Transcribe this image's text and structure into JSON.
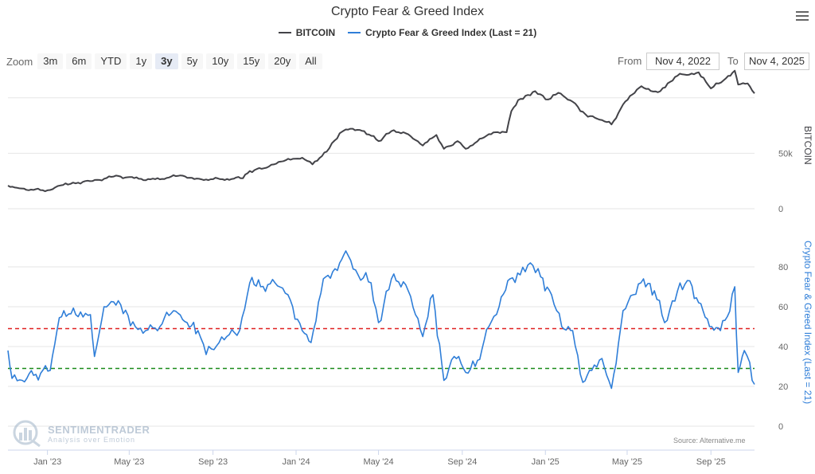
{
  "title": "Crypto Fear & Greed Index",
  "legend": [
    {
      "name": "BITCOIN",
      "color": "#434348"
    },
    {
      "name": "Crypto Fear & Greed Index (Last = 21)",
      "color": "#2f7ed8"
    }
  ],
  "zoom": {
    "label": "Zoom",
    "buttons": [
      "3m",
      "6m",
      "YTD",
      "1y",
      "3y",
      "5y",
      "10y",
      "15y",
      "20y",
      "All"
    ],
    "active": "3y"
  },
  "range": {
    "from_label": "From",
    "from_value": "Nov 4, 2022",
    "to_label": "To",
    "to_value": "Nov 4, 2025"
  },
  "watermark": {
    "main": "SENTIMENTRADER",
    "sub": "Analysis over Emotion"
  },
  "source": "Source: Alternative.me",
  "chart_data": {
    "type": "line",
    "xlim": [
      "2022-11-04",
      "2025-11-04"
    ],
    "x_ticks": [
      "Jan '23",
      "May '23",
      "Sep '23",
      "Jan '24",
      "May '24",
      "Sep '24",
      "Jan '25",
      "May '25",
      "Sep '25"
    ],
    "x_tick_dates": [
      "2023-01-01",
      "2023-05-01",
      "2023-09-01",
      "2024-01-01",
      "2024-05-01",
      "2024-09-01",
      "2025-01-01",
      "2025-05-01",
      "2025-09-01"
    ],
    "panels": [
      {
        "ylabel": "BITCOIN",
        "ylim": [
          0,
          125000
        ],
        "y_ticks": [
          0,
          50000
        ],
        "y_tick_labels": [
          "0",
          "50k"
        ],
        "series": [
          {
            "name": "BITCOIN",
            "color": "#434348",
            "x": [
              "2022-11-04",
              "2022-12-01",
              "2023-01-01",
              "2023-01-20",
              "2023-02-15",
              "2023-03-15",
              "2023-04-15",
              "2023-05-15",
              "2023-06-15",
              "2023-07-15",
              "2023-08-15",
              "2023-09-15",
              "2023-10-15",
              "2023-10-25",
              "2023-11-15",
              "2023-12-10",
              "2024-01-10",
              "2024-01-25",
              "2024-02-15",
              "2024-03-05",
              "2024-03-14",
              "2024-04-10",
              "2024-05-01",
              "2024-05-20",
              "2024-06-10",
              "2024-07-05",
              "2024-07-25",
              "2024-08-05",
              "2024-08-25",
              "2024-09-06",
              "2024-09-30",
              "2024-10-20",
              "2024-11-05",
              "2024-11-12",
              "2024-11-22",
              "2024-12-17",
              "2025-01-05",
              "2025-01-20",
              "2025-02-10",
              "2025-03-01",
              "2025-03-15",
              "2025-04-08",
              "2025-04-25",
              "2025-05-22",
              "2025-06-15",
              "2025-07-14",
              "2025-08-14",
              "2025-09-01",
              "2025-09-20",
              "2025-10-06",
              "2025-10-11",
              "2025-10-25",
              "2025-11-04"
            ],
            "y": [
              20800,
              17000,
              16600,
              21000,
              23500,
              26000,
              29500,
              27000,
              26500,
              30000,
              26500,
              26600,
              27500,
              34000,
              36500,
              42500,
              46000,
              40000,
              51500,
              68000,
              71500,
              70000,
              61000,
              70000,
              68000,
              57000,
              66500,
              54000,
              61000,
              54000,
              63500,
              69000,
              69000,
              88000,
              98000,
              106000,
              98500,
              104500,
              96500,
              85000,
              82000,
              76000,
              94000,
              110500,
              105000,
              120000,
              123000,
              108500,
              116000,
              124500,
              112000,
              113000,
              104000
            ]
          }
        ]
      },
      {
        "ylabel": "Crypto Fear & Greed Index (Last = 21)",
        "ylim": [
          0,
          100
        ],
        "y_ticks": [
          0,
          20,
          40,
          60,
          80
        ],
        "reference_lines": [
          {
            "value": 49,
            "color": "#e02020",
            "style": "dashed"
          },
          {
            "value": 29,
            "color": "#1a8a1a",
            "style": "dashed"
          }
        ],
        "series": [
          {
            "name": "Crypto Fear & Greed Index (Last = 21)",
            "color": "#2f7ed8",
            "x": [
              "2022-11-04",
              "2022-11-10",
              "2022-11-25",
              "2022-12-15",
              "2023-01-05",
              "2023-01-15",
              "2023-01-25",
              "2023-02-15",
              "2023-03-05",
              "2023-03-11",
              "2023-03-25",
              "2023-04-15",
              "2023-05-10",
              "2023-05-25",
              "2023-06-15",
              "2023-07-05",
              "2023-07-25",
              "2023-08-10",
              "2023-08-22",
              "2023-09-10",
              "2023-09-25",
              "2023-10-10",
              "2023-10-25",
              "2023-11-10",
              "2023-12-01",
              "2023-12-20",
              "2024-01-10",
              "2024-01-23",
              "2024-02-10",
              "2024-03-05",
              "2024-03-14",
              "2024-04-01",
              "2024-04-20",
              "2024-05-01",
              "2024-05-20",
              "2024-06-10",
              "2024-07-05",
              "2024-07-20",
              "2024-08-05",
              "2024-08-20",
              "2024-09-06",
              "2024-09-20",
              "2024-10-10",
              "2024-10-25",
              "2024-11-10",
              "2024-11-25",
              "2024-12-10",
              "2024-12-25",
              "2025-01-10",
              "2025-01-25",
              "2025-02-10",
              "2025-02-25",
              "2025-03-10",
              "2025-03-25",
              "2025-04-08",
              "2025-04-25",
              "2025-05-10",
              "2025-05-25",
              "2025-06-10",
              "2025-06-25",
              "2025-07-14",
              "2025-08-01",
              "2025-08-14",
              "2025-08-30",
              "2025-09-15",
              "2025-09-25",
              "2025-10-06",
              "2025-10-11",
              "2025-10-20",
              "2025-10-28",
              "2025-11-04"
            ],
            "y": [
              38,
              24,
              23,
              26,
              28,
              48,
              58,
              55,
              56,
              35,
              60,
              63,
              50,
              48,
              50,
              58,
              52,
              48,
              36,
              42,
              46,
              48,
              72,
              70,
              72,
              66,
              48,
              42,
              74,
              82,
              88,
              76,
              72,
              52,
              74,
              71,
              45,
              66,
              23,
              35,
              27,
              30,
              50,
              60,
              74,
              76,
              82,
              75,
              66,
              50,
              48,
              22,
              28,
              34,
              19,
              58,
              66,
              74,
              68,
              52,
              68,
              73,
              62,
              50,
              48,
              55,
              70,
              27,
              38,
              32,
              21
            ]
          }
        ]
      }
    ]
  }
}
